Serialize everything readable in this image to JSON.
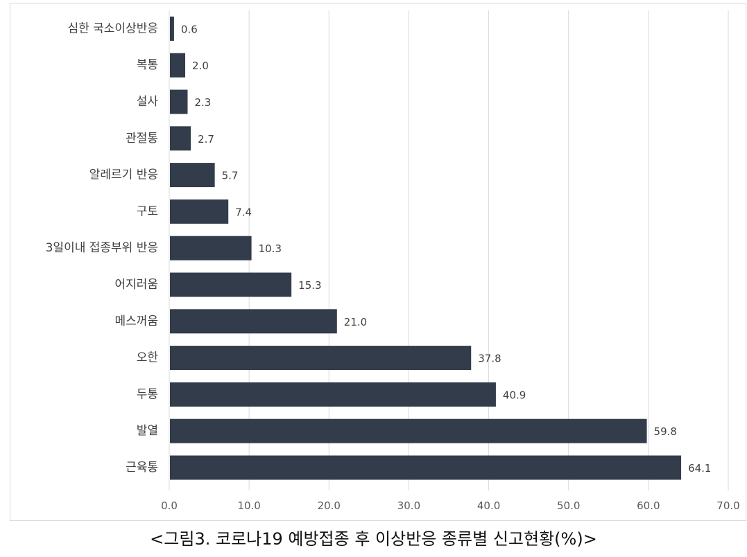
{
  "caption": "<그림3. 코로나19 예방접종 후 이상반응 종류별 신고현황(%)>",
  "chart_data": {
    "type": "bar",
    "orientation": "horizontal",
    "categories": [
      "심한 국소이상반응",
      "복통",
      "설사",
      "관절통",
      "알레르기 반응",
      "구토",
      "3일이내 접종부위 반응",
      "어지러움",
      "메스꺼움",
      "오한",
      "두통",
      "발열",
      "근육통"
    ],
    "values": [
      0.6,
      2.0,
      2.3,
      2.7,
      5.7,
      7.4,
      10.3,
      15.3,
      21.0,
      37.8,
      40.9,
      59.8,
      64.1
    ],
    "value_labels": [
      "0.6",
      "2.0",
      "2.3",
      "2.7",
      "5.7",
      "7.4",
      "10.3",
      "15.3",
      "21.0",
      "37.8",
      "40.9",
      "59.8",
      "64.1"
    ],
    "x_ticks": [
      "0.0",
      "10.0",
      "20.0",
      "30.0",
      "40.0",
      "50.0",
      "60.0",
      "70.0"
    ],
    "xlim": [
      0,
      70
    ],
    "grid": "vertical",
    "bar_color": "#323c4b",
    "grid_color": "#d9d9d9"
  }
}
